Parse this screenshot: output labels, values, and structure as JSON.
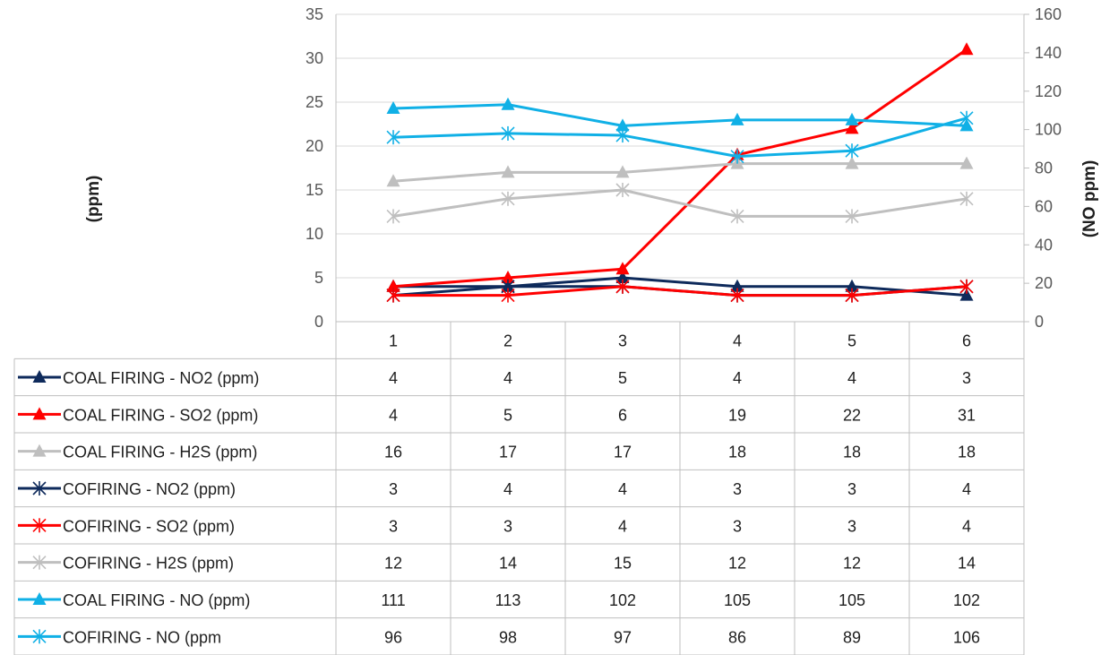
{
  "chart_data": {
    "type": "line",
    "categories": [
      "1",
      "2",
      "3",
      "4",
      "5",
      "6"
    ],
    "ylabel": "(ppm)",
    "y2label": "(NO ppm)",
    "ylim": [
      0,
      35
    ],
    "y2lim": [
      0,
      160
    ],
    "y_ticks": [
      "0",
      "5",
      "10",
      "15",
      "20",
      "25",
      "30",
      "35"
    ],
    "y2_ticks": [
      "0",
      "20",
      "40",
      "60",
      "80",
      "100",
      "120",
      "140",
      "160"
    ],
    "grid": "horizontal",
    "legend": "data-table-below",
    "series": [
      {
        "name": "COAL FIRING -  NO2 (ppm)",
        "color": "#0e2a5b",
        "marker": "triangle",
        "axis": "left",
        "values": [
          4,
          4,
          5,
          4,
          4,
          3
        ]
      },
      {
        "name": "COAL FIRING -  SO2 (ppm)",
        "color": "#ff0000",
        "marker": "triangle",
        "axis": "left",
        "values": [
          4,
          5,
          6,
          19,
          22,
          31
        ]
      },
      {
        "name": "COAL FIRING -  H2S (ppm)",
        "color": "#bfbfbf",
        "marker": "triangle",
        "axis": "left",
        "values": [
          16,
          17,
          17,
          18,
          18,
          18
        ]
      },
      {
        "name": "COFIRING -  NO2 (ppm)",
        "color": "#0e2a5b",
        "marker": "star",
        "axis": "left",
        "values": [
          3,
          4,
          4,
          3,
          3,
          4
        ]
      },
      {
        "name": "COFIRING -  SO2 (ppm)",
        "color": "#ff0000",
        "marker": "star",
        "axis": "left",
        "values": [
          3,
          3,
          4,
          3,
          3,
          4
        ]
      },
      {
        "name": "COFIRING -  H2S (ppm)",
        "color": "#bfbfbf",
        "marker": "star",
        "axis": "left",
        "values": [
          12,
          14,
          15,
          12,
          12,
          14
        ]
      },
      {
        "name": "COAL FIRING -  NO (ppm)",
        "color": "#10b0e6",
        "marker": "triangle",
        "axis": "right",
        "values": [
          111,
          113,
          102,
          105,
          105,
          102
        ]
      },
      {
        "name": "COFIRING -  NO (ppm",
        "color": "#10b0e6",
        "marker": "star",
        "axis": "right",
        "values": [
          96,
          98,
          97,
          86,
          89,
          106
        ]
      }
    ]
  }
}
